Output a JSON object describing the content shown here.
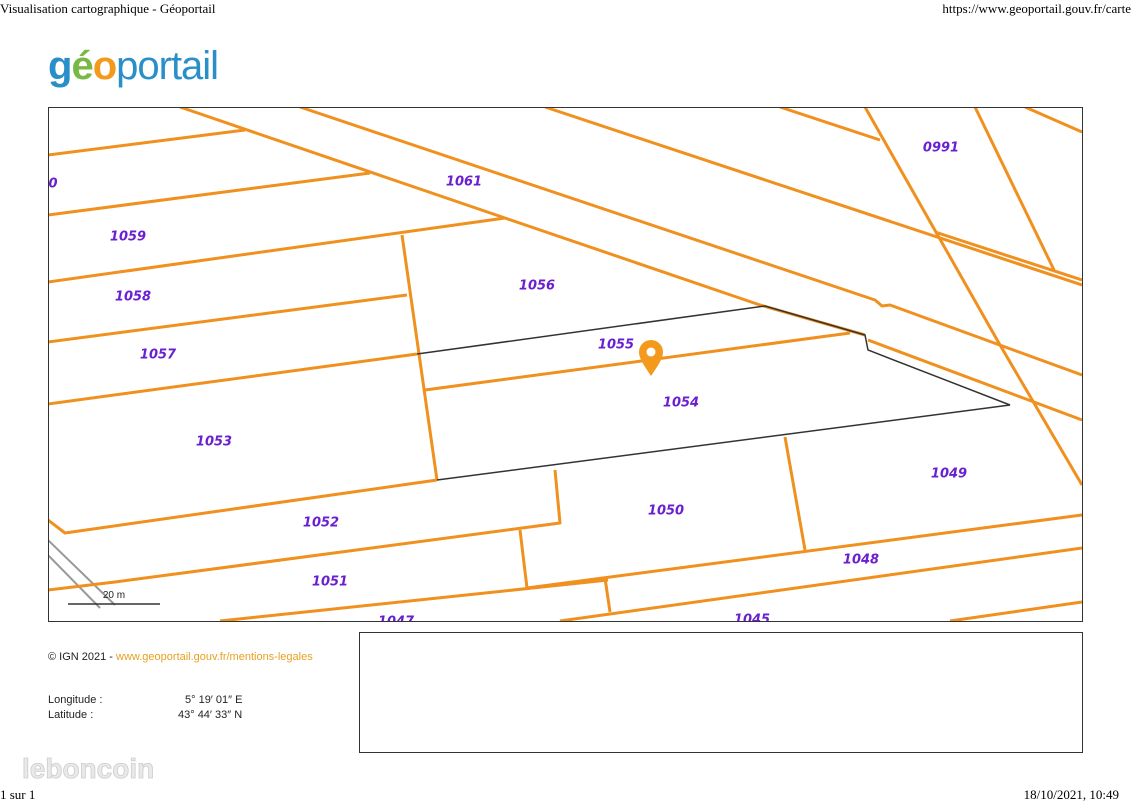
{
  "browser": {
    "title": "Visualisation cartographique - Géoportail",
    "url": "https://www.geoportail.gouv.fr/carte"
  },
  "logo": {
    "parts": [
      "g",
      "é",
      "o",
      "portail"
    ]
  },
  "map": {
    "parcels": [
      "0",
      "1061",
      "0991",
      "1059",
      "1058",
      "1057",
      "1056",
      "1055",
      "1054",
      "1053",
      "1049",
      "1050",
      "1052",
      "1048",
      "1051",
      "1047",
      "1045"
    ],
    "scale": "20 m"
  },
  "info": {
    "copyright": "© IGN 2021 -",
    "link": "www.geoportail.gouv.fr/mentions-legales",
    "longitude": {
      "label": "Longitude :",
      "value": "5° 19′ 01″ E"
    },
    "latitude": {
      "label": "Latitude :",
      "value": "43° 44′ 33″ N"
    }
  },
  "watermark": "leboncoin",
  "footer": {
    "page": "1 sur 1",
    "date": "18/10/2021, 10:49"
  }
}
